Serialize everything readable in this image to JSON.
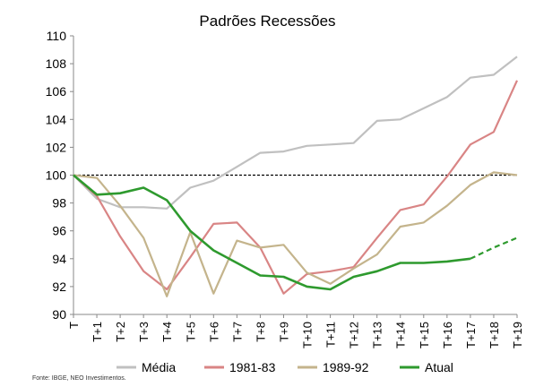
{
  "chart_data": {
    "type": "line",
    "title": "Padrões Recessões",
    "xlabel": "",
    "ylabel": "",
    "categories": [
      "T",
      "T+1",
      "T+2",
      "T+3",
      "T+4",
      "T+5",
      "T+6",
      "T+7",
      "T+8",
      "T+9",
      "T+10",
      "T+11",
      "T+12",
      "T+13",
      "T+14",
      "T+15",
      "T+16",
      "T+17",
      "T+18",
      "T+19"
    ],
    "y_ticks": [
      "90",
      "92",
      "94",
      "96",
      "98",
      "100",
      "102",
      "104",
      "106",
      "108",
      "110"
    ],
    "ylim": [
      90,
      110
    ],
    "reference_line": {
      "value": 100,
      "style": "dashed",
      "color": "#000000"
    },
    "series": [
      {
        "name": "Média",
        "color": "#c0c0c0",
        "values": [
          100,
          98.3,
          97.7,
          97.7,
          97.6,
          99.1,
          99.6,
          100.6,
          101.6,
          101.7,
          102.1,
          102.2,
          102.3,
          103.9,
          104.0,
          104.8,
          105.6,
          107.0,
          107.2,
          108.5
        ]
      },
      {
        "name": "1981-83",
        "color": "#d98585",
        "values": [
          100,
          98.5,
          95.6,
          93.1,
          91.8,
          94.1,
          96.5,
          96.6,
          94.8,
          91.5,
          92.9,
          93.1,
          93.4,
          95.5,
          97.5,
          97.9,
          99.9,
          102.2,
          103.1,
          106.8
        ]
      },
      {
        "name": "1989-92",
        "color": "#c4b48c",
        "values": [
          100,
          99.8,
          97.8,
          95.5,
          91.3,
          95.9,
          91.5,
          95.3,
          94.8,
          95.0,
          93.0,
          92.2,
          93.3,
          94.3,
          96.3,
          96.6,
          97.8,
          99.3,
          100.2,
          100.0
        ]
      },
      {
        "name": "Atual",
        "color": "#2e9a2e",
        "values": [
          100,
          98.6,
          98.7,
          99.1,
          98.2,
          96.0,
          94.6,
          93.7,
          92.8,
          92.7,
          92.0,
          91.8,
          92.7,
          93.1,
          93.7,
          93.7,
          93.8,
          94.0,
          null,
          null
        ],
        "projection": {
          "start_index": 17,
          "values": [
            94.0,
            94.8,
            95.5
          ]
        }
      }
    ],
    "legend_position": "bottom",
    "grid": false
  },
  "footer": {
    "source": "Fonte: IBGE, NEO Investimentos."
  }
}
